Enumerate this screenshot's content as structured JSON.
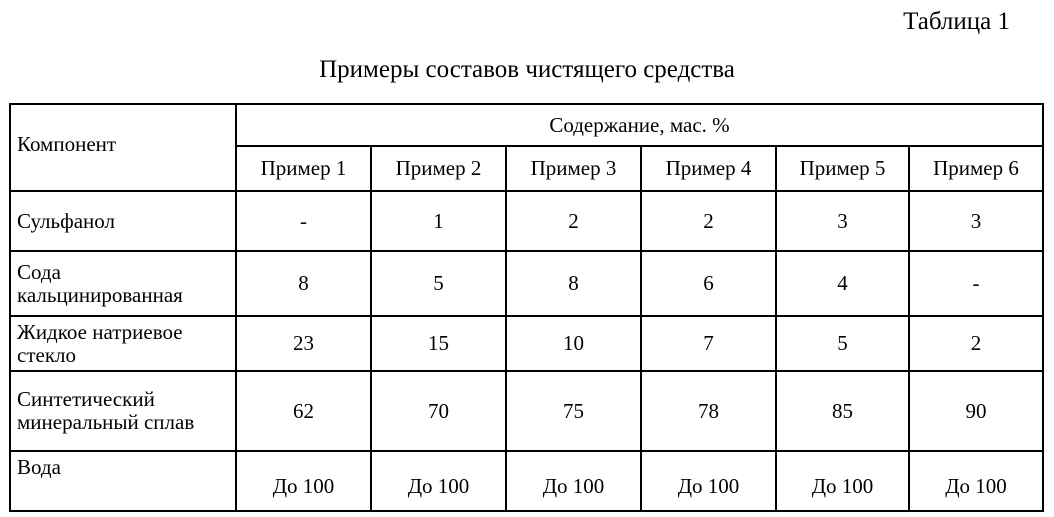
{
  "table_number": "Таблица 1",
  "title": "Примеры составов чистящего средства",
  "header": {
    "component": "Компонент",
    "content": "Содержание, мас. %",
    "examples": [
      "Пример 1",
      "Пример 2",
      "Пример 3",
      "Пример 4",
      "Пример 5",
      "Пример 6"
    ]
  },
  "rows": [
    {
      "name": "Сульфанол",
      "values": [
        "-",
        "1",
        "2",
        "2",
        "3",
        "3"
      ]
    },
    {
      "name": "Сода кальцинированная",
      "values": [
        "8",
        "5",
        "8",
        "6",
        "4",
        "-"
      ]
    },
    {
      "name": "Жидкое натриевое стекло",
      "values": [
        "23",
        "15",
        "10",
        "7",
        "5",
        "2"
      ]
    },
    {
      "name": "Синтетический минеральный сплав",
      "values": [
        "62",
        "70",
        "75",
        "78",
        "85",
        "90"
      ]
    },
    {
      "name": "Вода",
      "values": [
        "До 100",
        "До 100",
        "До 100",
        "До 100",
        "До 100",
        "До 100"
      ]
    }
  ]
}
